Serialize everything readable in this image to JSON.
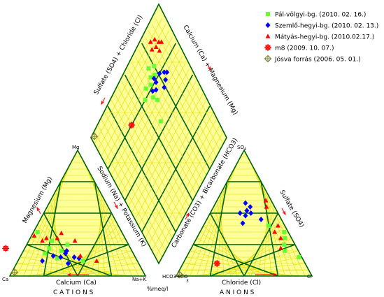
{
  "chart_data": {
    "type": "scatter",
    "subtype": "piper",
    "colors": {
      "fill": "#ffff99",
      "minor_grid": "#dcdc00",
      "major_grid": "#006400",
      "arrow": "#ff0000"
    },
    "labels": {
      "left_triangle_left_side": "Magnesium (Mg)",
      "left_triangle_right_side": "Sodium (Na) + Potassium (K)",
      "left_triangle_bottom": "Calcium (Ca)",
      "left_bottom_left": "Ca",
      "left_bottom_right": "Na+K",
      "left_top": "Mg",
      "cations_title": "C A T I O N S",
      "right_triangle_left_side": "Carbonate (CO3) + Bicarbonate (HCO3)",
      "right_triangle_right_side": "Sulfate (SO4)",
      "right_triangle_bottom": "Chloride (Cl)",
      "right_bottom_left": "HCO3+CO",
      "right_bottom_left_sub": "3",
      "right_bottom_right": "Cl",
      "right_top": "SO",
      "right_top_sub": "4",
      "anions_title": "A N I O N S",
      "diamond_left": "Sulfate (SO4) + Chloride (Cl)",
      "diamond_right": "Calcium (Ca) + Magnesium (Mg)",
      "unit": "%meq/l"
    },
    "series": [
      {
        "name": "Pál-völgyi-bg. (2010. 02. 16.)",
        "color": "#66ff33",
        "marker": "square",
        "cation": [
          [
            65,
            18
          ],
          [
            60,
            22
          ],
          [
            55,
            28
          ],
          [
            62,
            35
          ],
          [
            58,
            14
          ],
          [
            40,
            12
          ],
          [
            45,
            25
          ],
          [
            52,
            20
          ]
        ],
        "anion": [
          [
            5,
            30,
            65
          ],
          [
            8,
            25,
            67
          ],
          [
            3,
            35,
            62
          ],
          [
            10,
            20,
            70
          ],
          [
            12,
            40,
            48
          ],
          [
            2,
            15,
            83
          ]
        ],
        "diamond": [
          [
            68,
            80
          ],
          [
            72,
            78
          ],
          [
            75,
            82
          ],
          [
            65,
            77
          ],
          [
            70,
            85
          ],
          [
            60,
            79
          ],
          [
            62,
            70
          ],
          [
            64,
            66
          ],
          [
            55,
            75
          ],
          [
            58,
            55
          ]
        ]
      },
      {
        "name": "Szemlő-hegyi-bg. (2010. 02. 13.)",
        "color": "#0000ff",
        "marker": "diamond",
        "cation": [
          [
            55,
            15
          ],
          [
            50,
            18
          ],
          [
            48,
            20
          ],
          [
            70,
            12
          ],
          [
            60,
            16
          ],
          [
            45,
            15
          ],
          [
            42,
            14
          ],
          [
            52,
            10
          ]
        ],
        "anion": [
          [
            20,
            50,
            30
          ],
          [
            22,
            52,
            26
          ],
          [
            18,
            55,
            27
          ],
          [
            25,
            48,
            27
          ],
          [
            15,
            45,
            40
          ],
          [
            30,
            42,
            28
          ],
          [
            28,
            50,
            22
          ],
          [
            20,
            58,
            22
          ]
        ],
        "diamond": [
          [
            80,
            72
          ],
          [
            76,
            75
          ],
          [
            70,
            77
          ],
          [
            82,
            70
          ],
          [
            78,
            68
          ],
          [
            74,
            66
          ],
          [
            70,
            74
          ],
          [
            67,
            71
          ],
          [
            64,
            73
          ]
        ]
      },
      {
        "name": "Mátyás-hegyi-bg. (2010.02.17.)",
        "color": "#ff0000",
        "marker": "triangle",
        "cation": [
          [
            62,
            28
          ],
          [
            58,
            30
          ],
          [
            50,
            30
          ],
          [
            40,
            16
          ],
          [
            30,
            12
          ],
          [
            38,
            28
          ],
          [
            66,
            32
          ],
          [
            45,
            34
          ]
        ],
        "anion": [
          [
            8,
            30,
            62
          ],
          [
            5,
            40,
            55
          ],
          [
            10,
            35,
            55
          ],
          [
            12,
            22,
            66
          ],
          [
            6,
            55,
            39
          ],
          [
            4,
            60,
            36
          ]
        ],
        "diamond": [
          [
            88,
            88
          ],
          [
            86,
            92
          ],
          [
            90,
            86
          ],
          [
            84,
            88
          ],
          [
            82,
            94
          ],
          [
            80,
            90
          ],
          [
            85,
            84
          ]
        ]
      },
      {
        "name": "m8 (2009. 10. 07.)",
        "color": "#ff0000",
        "marker": "star",
        "cation": [
          [
            92,
            22
          ]
        ],
        "anion": [
          [
            65,
            10,
            25
          ]
        ],
        "diamond": [
          [
            35,
            75
          ]
        ]
      },
      {
        "name": "Jósva forrás (2006. 05. 01.)",
        "color": "#808040",
        "marker": "cross-diamond",
        "cation": [
          [
            95,
            3
          ]
        ],
        "anion": [
          [
            97,
            1,
            2
          ]
        ],
        "diamond": [
          [
            3,
            98
          ]
        ]
      }
    ]
  }
}
